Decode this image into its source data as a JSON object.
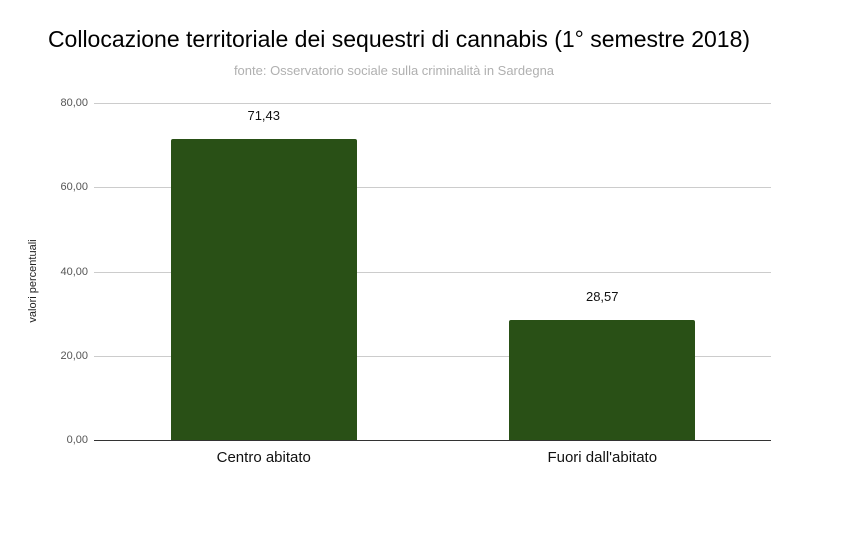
{
  "chart_data": {
    "type": "bar",
    "title": "Collocazione territoriale dei sequestri di cannabis (1° semestre  2018)",
    "subtitle": "fonte: Osservatorio sociale sulla criminalità in Sardegna",
    "xlabel": "",
    "ylabel": "valori percentuali",
    "categories": [
      "Centro abitato",
      "Fuori dall'abitato"
    ],
    "values": [
      71.43,
      28.57
    ],
    "value_labels": [
      "71,43",
      "28,57"
    ],
    "ylim": [
      0,
      80
    ],
    "yticks": [
      "0,00",
      "20,00",
      "40,00",
      "60,00",
      "80,00"
    ],
    "grid": true,
    "legend": "none",
    "bar_color": "#295016"
  }
}
